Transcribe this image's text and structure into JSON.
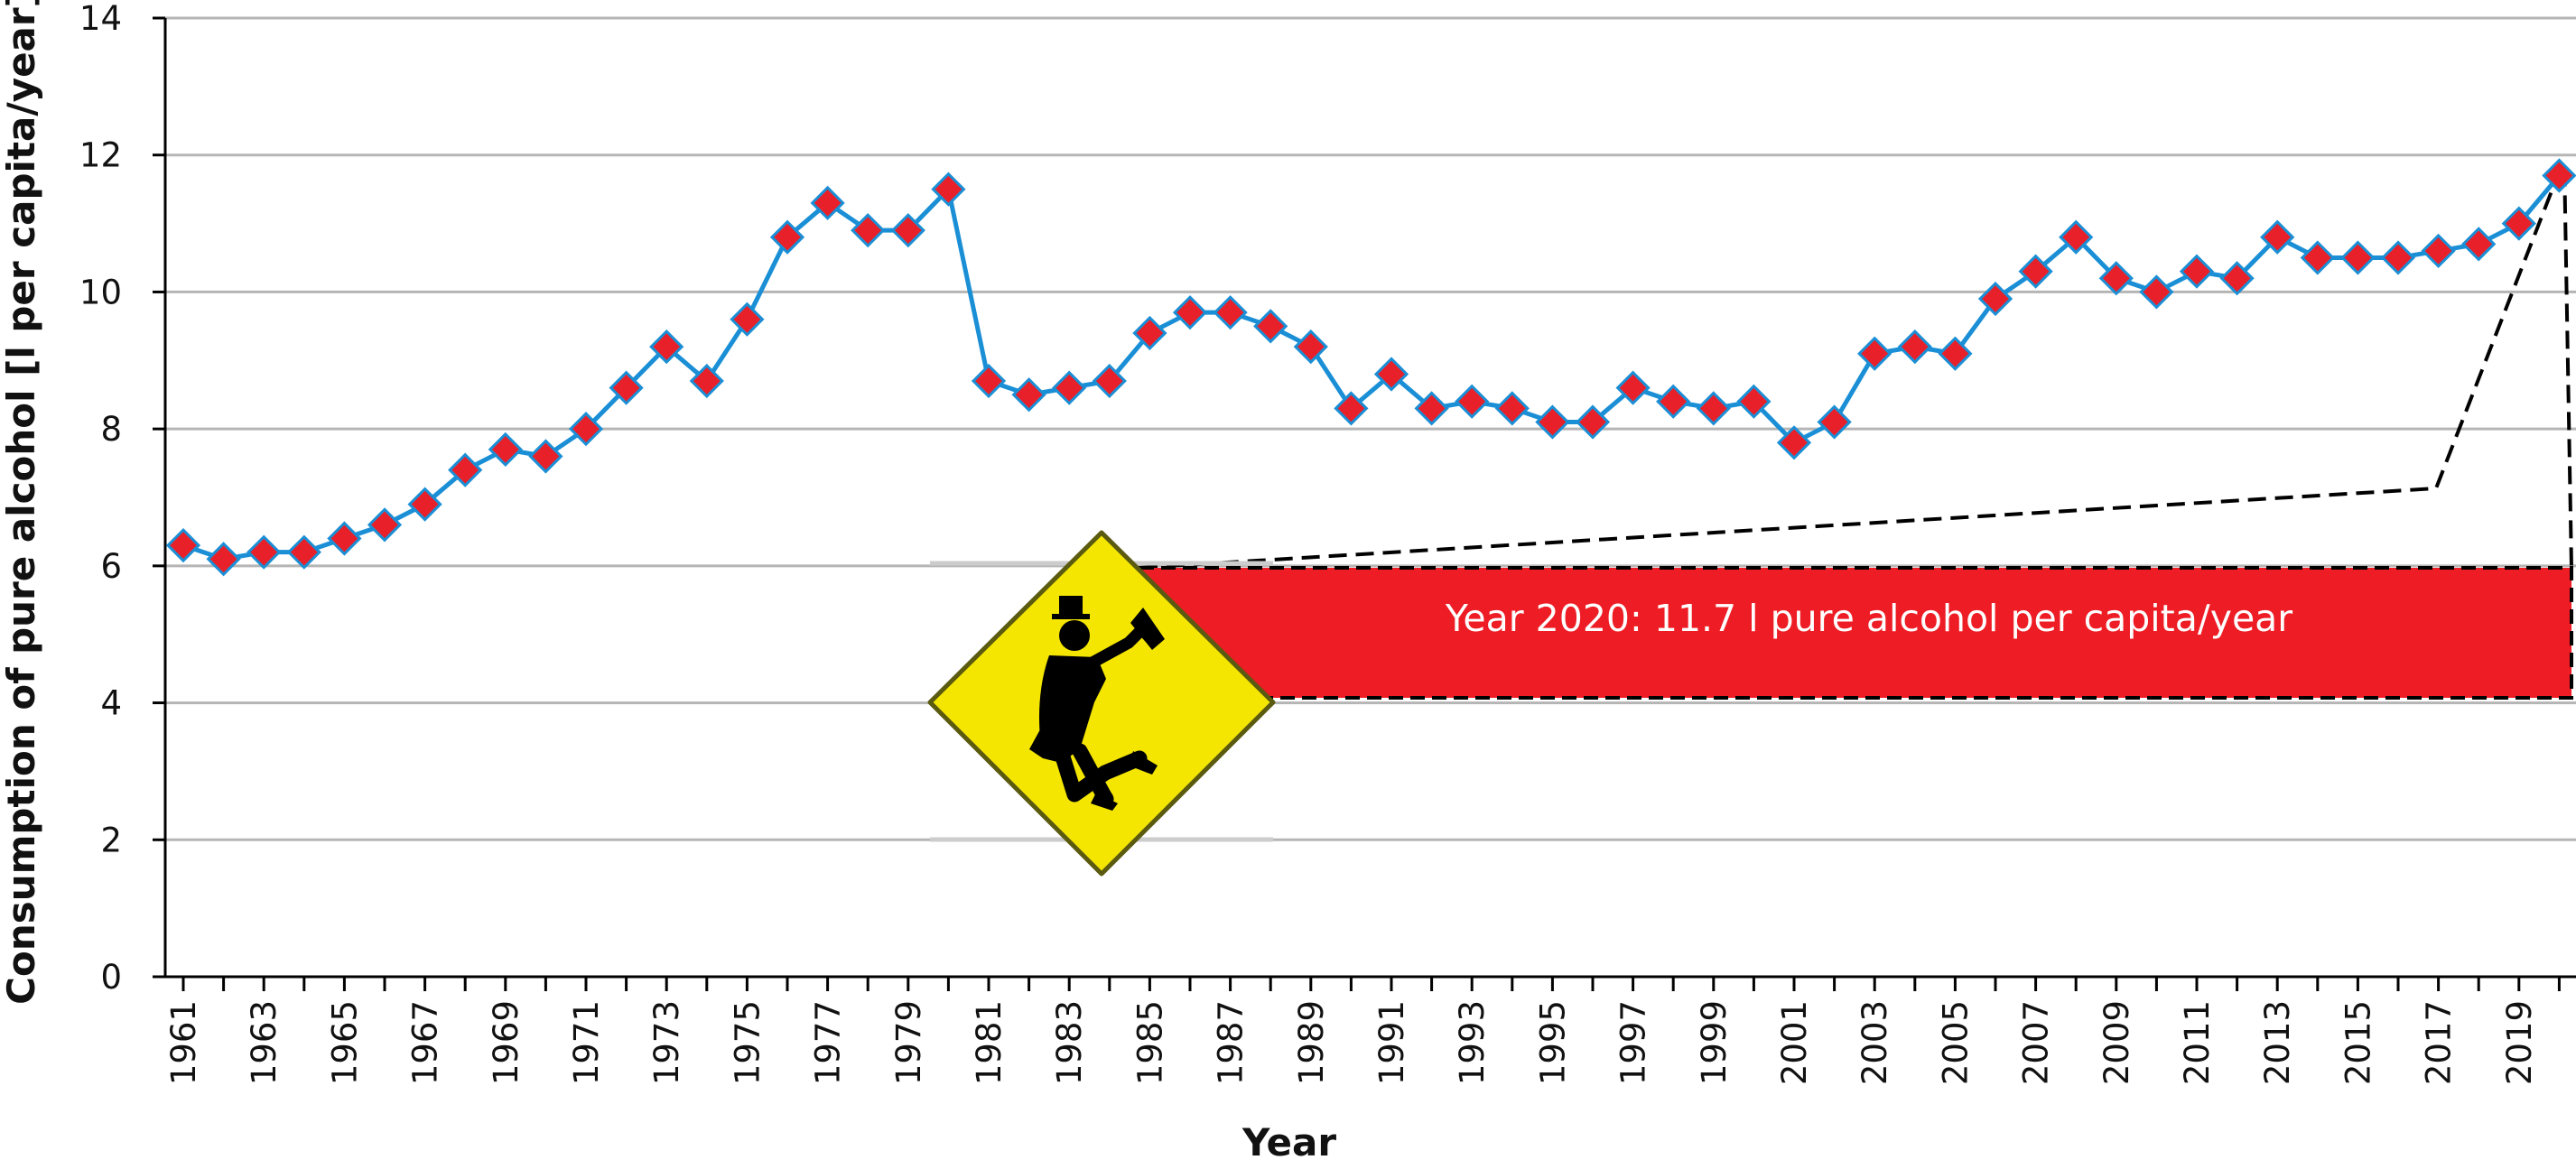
{
  "chart_data": {
    "type": "line",
    "xlabel": "Year",
    "ylabel": "Consumption of pure alcohol [l per capita/year]",
    "ylim": [
      0,
      14
    ],
    "yticks": [
      0,
      2,
      4,
      6,
      8,
      10,
      12,
      14
    ],
    "grid": "horizontal",
    "x": [
      1961,
      1962,
      1963,
      1964,
      1965,
      1966,
      1967,
      1968,
      1969,
      1970,
      1971,
      1972,
      1973,
      1974,
      1975,
      1976,
      1977,
      1978,
      1979,
      1980,
      1981,
      1982,
      1983,
      1984,
      1985,
      1986,
      1987,
      1988,
      1989,
      1990,
      1991,
      1992,
      1993,
      1994,
      1995,
      1996,
      1997,
      1998,
      1999,
      2000,
      2001,
      2002,
      2003,
      2004,
      2005,
      2006,
      2007,
      2008,
      2009,
      2010,
      2011,
      2012,
      2013,
      2014,
      2015,
      2016,
      2017,
      2018,
      2019,
      2020
    ],
    "xtick_labels": [
      "1961",
      "1963",
      "1965",
      "1967",
      "1969",
      "1971",
      "1973",
      "1975",
      "1977",
      "1979",
      "1981",
      "1983",
      "1985",
      "1987",
      "1989",
      "1991",
      "1993",
      "1995",
      "1997",
      "1999",
      "2001",
      "2003",
      "2005",
      "2007",
      "2009",
      "2011",
      "2013",
      "2015",
      "2017",
      "2019"
    ],
    "series": [
      {
        "values": [
          6.3,
          6.1,
          6.2,
          6.2,
          6.4,
          6.6,
          6.9,
          7.4,
          7.7,
          7.6,
          8.0,
          8.6,
          9.2,
          8.7,
          9.6,
          10.8,
          11.3,
          10.9,
          10.9,
          11.5,
          8.7,
          8.5,
          8.6,
          8.7,
          9.4,
          9.7,
          9.7,
          9.5,
          9.2,
          8.3,
          8.8,
          8.3,
          8.4,
          8.3,
          8.1,
          8.1,
          8.6,
          8.4,
          8.3,
          8.4,
          7.8,
          8.1,
          9.1,
          9.2,
          9.1,
          9.9,
          10.3,
          10.8,
          10.2,
          10.0,
          10.3,
          10.2,
          10.8,
          10.5,
          10.5,
          10.5,
          10.6,
          10.7,
          11.0,
          11.7
        ],
        "line_color": "#1a8fd6",
        "marker_color": "#e8202a",
        "marker": "diamond"
      }
    ],
    "annotation": {
      "text": "Year 2020: 11.7 l pure alcohol per capita/year",
      "box_color": "#ee1c24",
      "points_to_year": 2020,
      "icon": "drunk-person-warning-sign-icon",
      "icon_color": "#f4e600"
    }
  }
}
